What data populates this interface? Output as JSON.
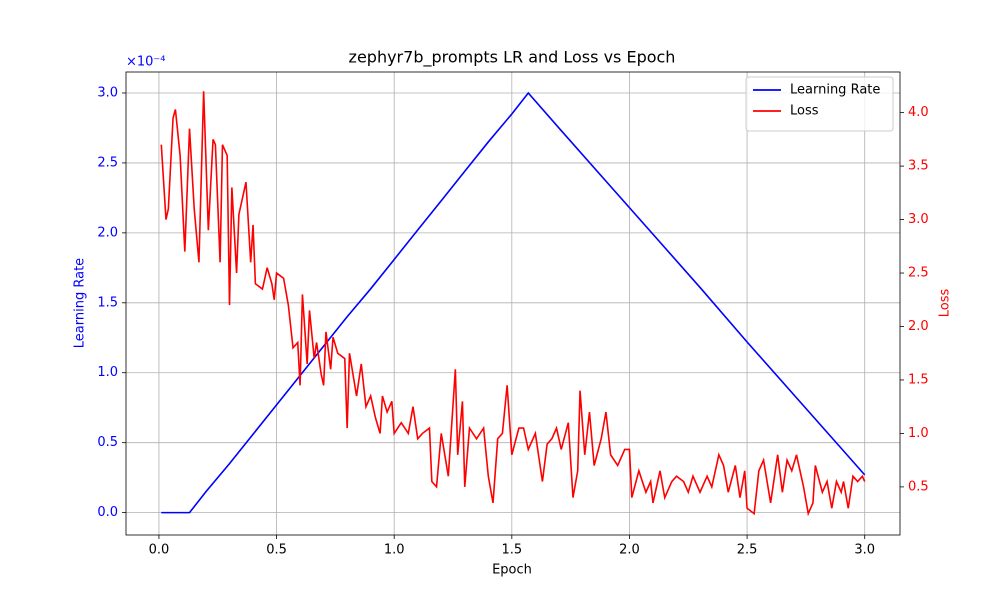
{
  "chart_data": {
    "type": "line",
    "title": "zephyr7b_prompts LR and Loss vs Epoch",
    "xlabel": "Epoch",
    "ylabel": "Learning Rate",
    "y2label": "Loss",
    "y_offset_label": "×10⁻⁴",
    "xlim": [
      -0.14,
      3.15
    ],
    "ylim": [
      -0.16,
      3.15
    ],
    "y2lim": [
      0.05,
      4.38
    ],
    "xticks": [
      {
        "value": 0,
        "label": "0.0"
      },
      0.5,
      {
        "value": 1,
        "label": "1.0"
      },
      1.5,
      {
        "value": 2,
        "label": "2.0"
      },
      2.5,
      {
        "value": 3,
        "label": "3.0"
      }
    ],
    "yticks": [
      {
        "value": 0,
        "label": "0.0"
      },
      0.5,
      {
        "value": 1,
        "label": "1.0"
      },
      1.5,
      {
        "value": 2,
        "label": "2.0"
      },
      2.5,
      {
        "value": 3,
        "label": "3.0"
      }
    ],
    "y2ticks": [
      0.5,
      {
        "value": 1,
        "label": "1.0"
      },
      1.5,
      {
        "value": 2,
        "label": "2.0"
      },
      2.5,
      {
        "value": 3,
        "label": "3.0"
      },
      3.5,
      {
        "value": 4,
        "label": "4.0"
      }
    ],
    "grid": true,
    "legend": "upper right",
    "series": [
      {
        "name": "Learning Rate",
        "color": "#0000ff",
        "x": [
          0.01,
          0.13,
          0.2,
          0.3,
          0.4,
          0.5,
          0.6,
          0.7,
          0.8,
          0.9,
          1.0,
          1.1,
          1.2,
          1.3,
          1.4,
          1.5,
          1.57,
          1.7,
          1.9,
          2.1,
          2.3,
          2.5,
          2.7,
          2.9,
          3.0
        ],
        "values": [
          0,
          0,
          0.15,
          0.35,
          0.56,
          0.77,
          0.98,
          1.19,
          1.4,
          1.6,
          1.81,
          2.02,
          2.23,
          2.44,
          2.65,
          2.85,
          3.0,
          2.75,
          2.37,
          1.99,
          1.61,
          1.22,
          0.84,
          0.46,
          0.27
        ]
      },
      {
        "name": "Loss",
        "color": "#ff0000",
        "axis": "y2",
        "x": [
          0.01,
          0.03,
          0.04,
          0.06,
          0.07,
          0.09,
          0.11,
          0.13,
          0.15,
          0.17,
          0.19,
          0.21,
          0.23,
          0.24,
          0.26,
          0.27,
          0.29,
          0.3,
          0.31,
          0.33,
          0.34,
          0.37,
          0.39,
          0.4,
          0.41,
          0.44,
          0.46,
          0.48,
          0.49,
          0.5,
          0.53,
          0.55,
          0.57,
          0.59,
          0.6,
          0.61,
          0.63,
          0.64,
          0.66,
          0.67,
          0.69,
          0.7,
          0.71,
          0.73,
          0.74,
          0.76,
          0.79,
          0.8,
          0.81,
          0.84,
          0.86,
          0.88,
          0.9,
          0.92,
          0.94,
          0.95,
          0.97,
          0.99,
          1.0,
          1.03,
          1.06,
          1.08,
          1.1,
          1.12,
          1.15,
          1.16,
          1.18,
          1.2,
          1.23,
          1.26,
          1.27,
          1.29,
          1.3,
          1.32,
          1.35,
          1.38,
          1.4,
          1.42,
          1.44,
          1.46,
          1.48,
          1.5,
          1.53,
          1.55,
          1.57,
          1.6,
          1.63,
          1.65,
          1.67,
          1.69,
          1.71,
          1.74,
          1.76,
          1.78,
          1.79,
          1.81,
          1.83,
          1.85,
          1.88,
          1.9,
          1.92,
          1.95,
          1.98,
          2.0,
          2.01,
          2.04,
          2.07,
          2.09,
          2.1,
          2.13,
          2.15,
          2.18,
          2.2,
          2.23,
          2.25,
          2.27,
          2.3,
          2.33,
          2.35,
          2.38,
          2.4,
          2.42,
          2.45,
          2.47,
          2.49,
          2.5,
          2.53,
          2.55,
          2.57,
          2.6,
          2.63,
          2.65,
          2.67,
          2.69,
          2.71,
          2.74,
          2.76,
          2.78,
          2.79,
          2.82,
          2.84,
          2.86,
          2.88,
          2.9,
          2.91,
          2.93,
          2.95,
          2.97,
          2.99,
          3.0
        ],
        "values": [
          3.7,
          3.0,
          3.1,
          3.95,
          4.03,
          3.6,
          2.7,
          3.85,
          3.1,
          2.6,
          4.2,
          2.9,
          3.75,
          3.7,
          2.6,
          3.7,
          3.6,
          2.2,
          3.3,
          2.5,
          3.05,
          3.35,
          2.6,
          2.95,
          2.4,
          2.35,
          2.55,
          2.4,
          2.25,
          2.5,
          2.45,
          2.2,
          1.8,
          1.85,
          1.45,
          2.3,
          1.65,
          2.15,
          1.7,
          1.85,
          1.55,
          1.45,
          1.95,
          1.6,
          1.9,
          1.75,
          1.7,
          1.05,
          1.75,
          1.35,
          1.65,
          1.25,
          1.35,
          1.15,
          1.0,
          1.35,
          1.2,
          1.3,
          1.0,
          1.1,
          1.0,
          1.25,
          0.95,
          1.0,
          1.05,
          0.55,
          0.5,
          1.0,
          0.6,
          1.6,
          0.8,
          1.3,
          0.5,
          1.05,
          0.95,
          1.05,
          0.6,
          0.35,
          0.95,
          1.0,
          1.45,
          0.8,
          1.05,
          1.05,
          0.85,
          1.0,
          0.55,
          0.9,
          0.95,
          1.05,
          0.85,
          1.1,
          0.4,
          0.65,
          1.4,
          0.8,
          1.2,
          0.7,
          0.95,
          1.2,
          0.8,
          0.7,
          0.85,
          0.85,
          0.4,
          0.65,
          0.45,
          0.55,
          0.35,
          0.65,
          0.4,
          0.55,
          0.6,
          0.55,
          0.45,
          0.6,
          0.45,
          0.6,
          0.5,
          0.8,
          0.7,
          0.45,
          0.7,
          0.4,
          0.65,
          0.3,
          0.25,
          0.65,
          0.75,
          0.35,
          0.8,
          0.45,
          0.75,
          0.65,
          0.8,
          0.5,
          0.25,
          0.35,
          0.7,
          0.45,
          0.55,
          0.3,
          0.55,
          0.45,
          0.55,
          0.3,
          0.6,
          0.55,
          0.6,
          0.55
        ]
      }
    ]
  }
}
